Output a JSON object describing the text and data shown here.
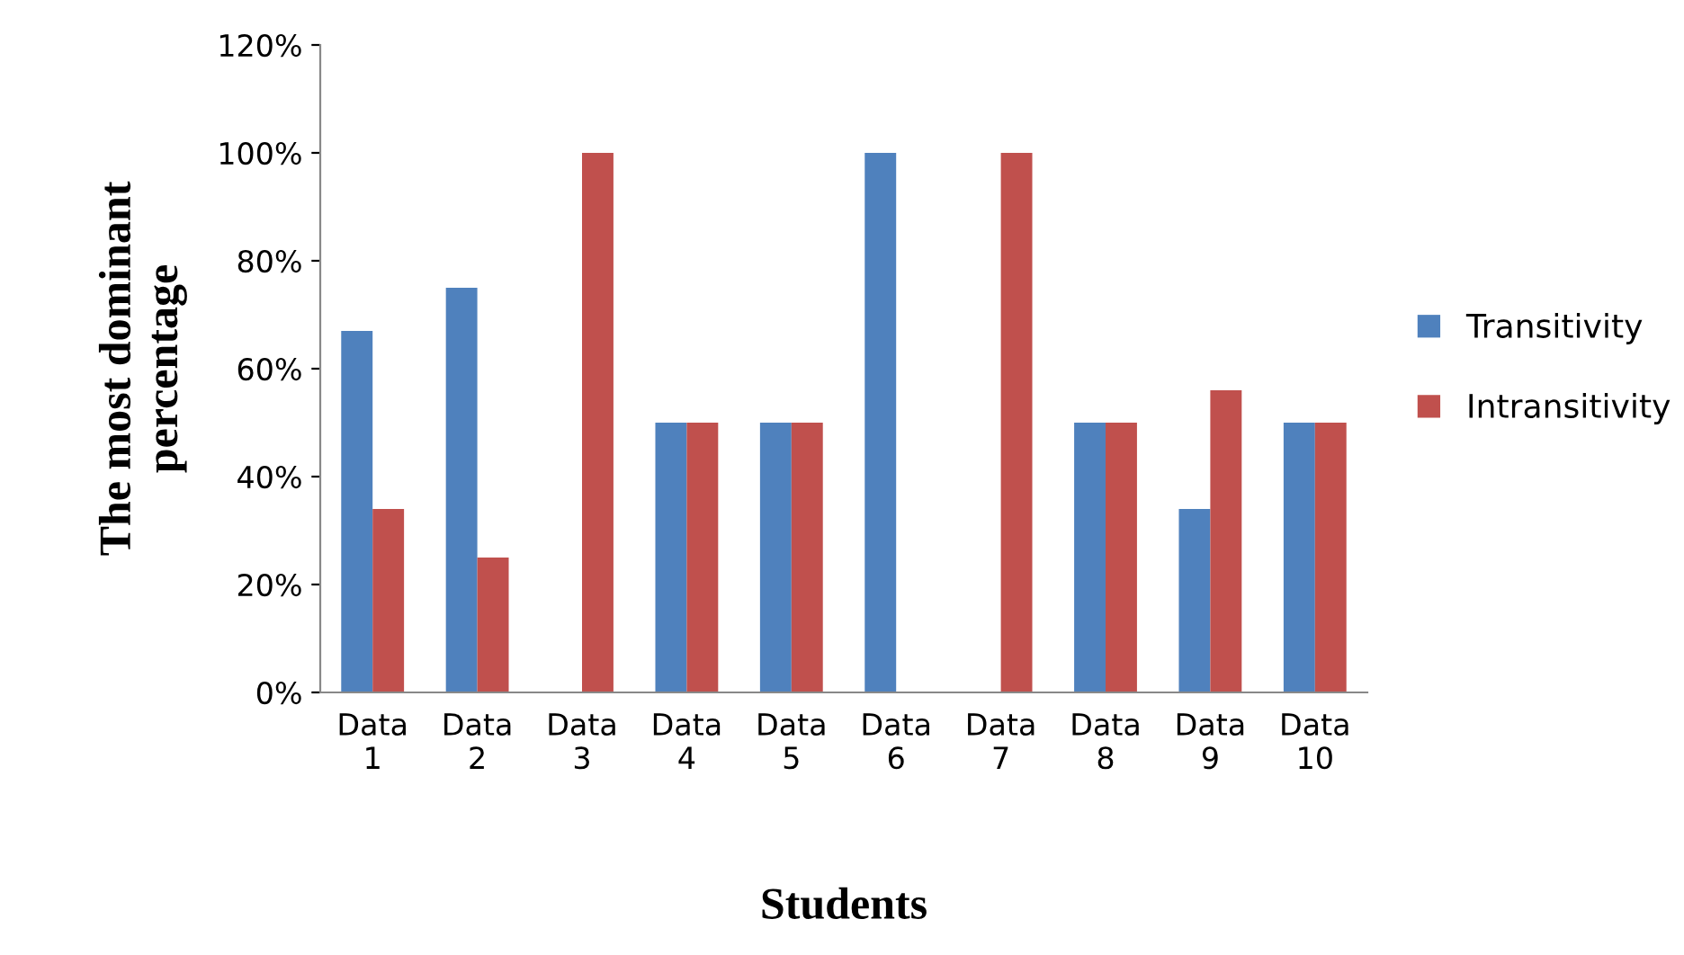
{
  "chart_data": {
    "type": "bar",
    "xlabel": "Students",
    "ylabel": "The most dominant\npercentage",
    "categories": [
      "Data\n1",
      "Data\n2",
      "Data\n3",
      "Data\n4",
      "Data\n5",
      "Data\n6",
      "Data\n7",
      "Data\n8",
      "Data\n9",
      "Data\n10"
    ],
    "series": [
      {
        "name": "Transitivity",
        "color": "#4f81bd",
        "values": [
          67,
          75,
          0,
          50,
          50,
          100,
          0,
          50,
          34,
          50
        ]
      },
      {
        "name": "Intransitivity",
        "color": "#c0504d",
        "values": [
          34,
          25,
          100,
          50,
          50,
          0,
          100,
          50,
          56,
          50
        ]
      }
    ],
    "ylim": [
      0,
      120
    ],
    "yticks": [
      {
        "value": 0,
        "label": "0%"
      },
      {
        "value": 20,
        "label": "20%"
      },
      {
        "value": 40,
        "label": "40%"
      },
      {
        "value": 60,
        "label": "60%"
      },
      {
        "value": 80,
        "label": "80%"
      },
      {
        "value": 100,
        "label": "100%"
      },
      {
        "value": 120,
        "label": "120%"
      }
    ],
    "grid": false,
    "legend": "right"
  }
}
